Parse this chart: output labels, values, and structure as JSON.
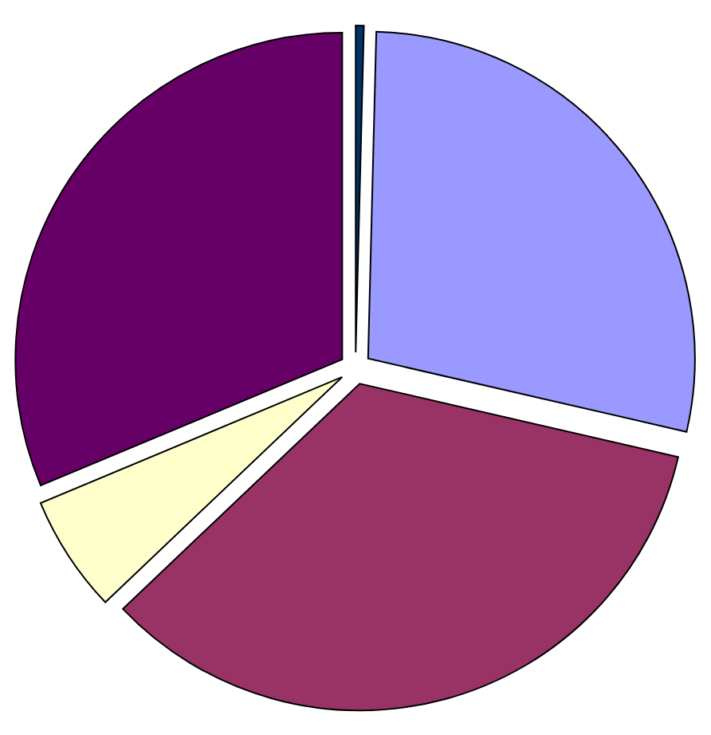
{
  "chart_data": {
    "type": "pie",
    "categories": [
      null,
      null,
      null,
      null,
      null
    ],
    "values": [
      0.4,
      28.2,
      34.3,
      5.8,
      31.3
    ],
    "colors": [
      "#003366",
      "#9999ff",
      "#993366",
      "#ffffcc",
      "#660066"
    ]
  }
}
